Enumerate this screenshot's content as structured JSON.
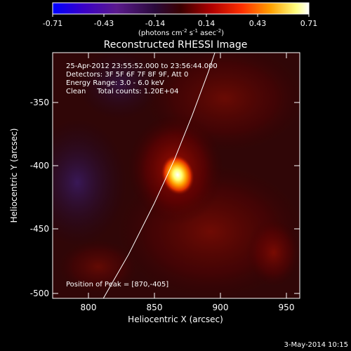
{
  "colorbar": {
    "ticks": [
      "-0.71",
      "-0.43",
      "-0.14",
      "0.14",
      "0.43",
      "0.71"
    ],
    "units_main": "(photons cm",
    "units_exp1": "-2",
    "units_s": " s",
    "units_exp2": "-1",
    "units_asec": " asec",
    "units_exp3": "-2",
    "units_close": ")",
    "colors": [
      "#0000ff",
      "#3a00c8",
      "#5a1a8c",
      "#2a0a3a",
      "#3a0000",
      "#b00000",
      "#ff3000",
      "#ffa000",
      "#ffff80",
      "#ffffff"
    ]
  },
  "title": "Reconstructed RHESSI Image",
  "info": {
    "line1": "25-Apr-2012 23:55:52.000 to 23:56:44.000",
    "line2": "Detectors: 3F 5F 6F 7F 8F 9F, Att 0",
    "line3": "Energy Range: 3.0 - 6.0 keV",
    "line4": "Clean     Total counts: 1.20E+04"
  },
  "peak_label": "Position of Peak = [870,-405]",
  "xaxis": {
    "label": "Heliocentric X (arcsec)",
    "ticks": [
      "800",
      "850",
      "900",
      "950"
    ]
  },
  "yaxis": {
    "label": "Heliocentric Y (arcsec)",
    "ticks": [
      "-350",
      "-400",
      "-450",
      "-500"
    ]
  },
  "footer_date": "3-May-2014 10:15",
  "plot": {
    "xlim": [
      770,
      965
    ],
    "ylim": [
      -505,
      -310
    ]
  },
  "source": {
    "peak_x": 870,
    "peak_y": -405
  },
  "limb_points": [
    [
      810,
      -505
    ],
    [
      830,
      -470
    ],
    [
      850,
      -430
    ],
    [
      866,
      -395
    ],
    [
      880,
      -360
    ],
    [
      893,
      -325
    ],
    [
      898,
      -310
    ]
  ]
}
